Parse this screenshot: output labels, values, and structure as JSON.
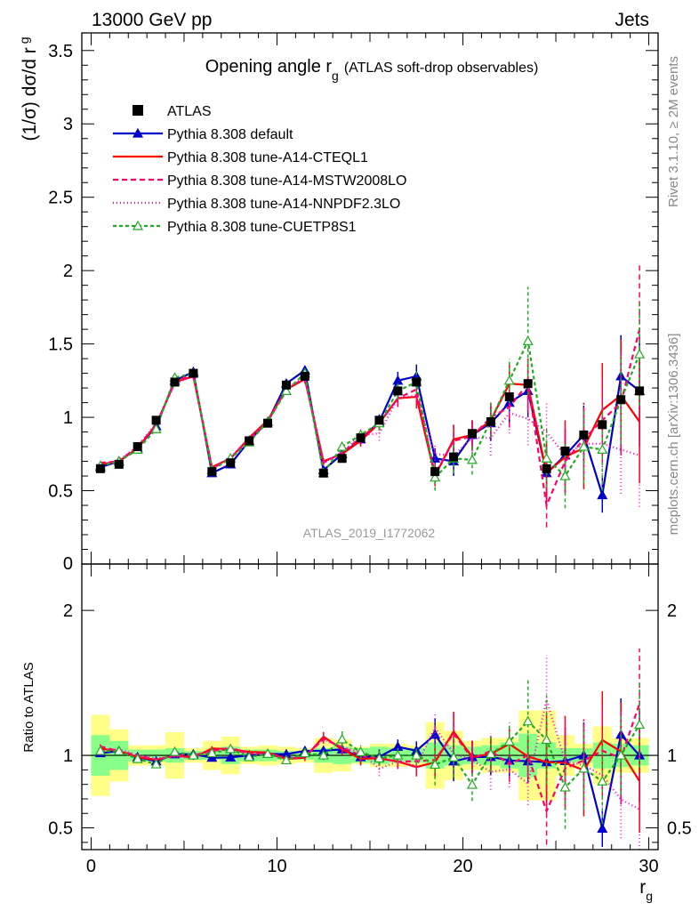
{
  "header": {
    "left": "13000 GeV pp",
    "right": "Jets"
  },
  "side_notes": {
    "rivet": "Rivet 3.1.10, ≥ 2M events",
    "mcplots": "mcplots.cern.ch [arXiv:1306.3436]"
  },
  "chart_data": {
    "type": "line",
    "title_main": "Opening angle r",
    "title_sub": "g",
    "title_note": "(ATLAS soft-drop observables)",
    "watermark": "ATLAS_2019_I1772062",
    "xlabel": "r",
    "xlabel_sub": "g",
    "ylabel": "(1/σ) dσ/d r",
    "ylabel_sub": "g",
    "ratio_ylabel": "Ratio to ATLAS",
    "xlim": [
      -0.5,
      30.5
    ],
    "ylim": [
      0,
      3.62
    ],
    "ratio_ylim": [
      0.35,
      2.32
    ],
    "main_ticks": [
      "0.5",
      "1",
      "1.5",
      "2",
      "2.5",
      "3",
      "3.5"
    ],
    "main_tick_values": [
      0.5,
      1,
      1.5,
      2,
      2.5,
      3,
      3.5
    ],
    "main_zero_label": "0",
    "ratio_ticks": [
      "0.5",
      "1",
      "2"
    ],
    "ratio_tick_values": [
      0.5,
      1,
      2
    ],
    "x_ticks": [
      "0",
      "10",
      "20",
      "30"
    ],
    "x_tick_values": [
      0,
      10,
      20,
      30
    ],
    "x": [
      0.5,
      1.5,
      2.5,
      3.5,
      4.5,
      5.5,
      6.5,
      7.5,
      8.5,
      9.5,
      10.5,
      11.5,
      12.5,
      13.5,
      14.5,
      15.5,
      16.5,
      17.5,
      18.5,
      19.5,
      20.5,
      21.5,
      22.5,
      23.5,
      24.5,
      25.5,
      26.5,
      27.5,
      28.5,
      29.5
    ],
    "data": {
      "name": "ATLAS",
      "values": [
        0.65,
        0.68,
        0.8,
        0.98,
        1.24,
        1.3,
        0.63,
        0.69,
        0.84,
        0.96,
        1.22,
        1.28,
        0.62,
        0.72,
        0.86,
        0.98,
        1.18,
        1.24,
        0.63,
        0.73,
        0.89,
        0.97,
        1.14,
        1.23,
        0.65,
        0.77,
        0.88,
        0.95,
        1.12,
        1.18
      ],
      "ratio_band_stat": [
        0.14,
        0.1,
        0.04,
        0.04,
        0.05,
        0.03,
        0.03,
        0.06,
        0.04,
        0.04,
        0.03,
        0.03,
        0.05,
        0.06,
        0.05,
        0.06,
        0.05,
        0.05,
        0.09,
        0.07,
        0.06,
        0.07,
        0.09,
        0.15,
        0.09,
        0.05,
        0.05,
        0.09,
        0.08,
        0.07
      ],
      "ratio_band_total": [
        0.28,
        0.18,
        0.07,
        0.07,
        0.16,
        0.05,
        0.1,
        0.13,
        0.06,
        0.07,
        0.06,
        0.05,
        0.12,
        0.11,
        0.06,
        0.08,
        0.08,
        0.07,
        0.23,
        0.17,
        0.1,
        0.12,
        0.12,
        0.31,
        0.31,
        0.14,
        0.08,
        0.2,
        0.12,
        0.12
      ]
    },
    "series": [
      {
        "name": "Pythia 8.308 default",
        "color": "#0000cc",
        "dash": "",
        "marker": "triangle-filled",
        "values": [
          0.66,
          0.7,
          0.79,
          0.94,
          1.25,
          1.31,
          0.62,
          0.68,
          0.84,
          0.97,
          1.23,
          1.32,
          0.64,
          0.75,
          0.85,
          0.97,
          1.25,
          1.28,
          0.72,
          0.7,
          0.88,
          0.96,
          1.1,
          1.18,
          0.62,
          0.74,
          0.88,
          0.47,
          1.28,
          1.18
        ],
        "errors": [
          0.01,
          0.01,
          0.01,
          0.01,
          0.01,
          0.02,
          0.01,
          0.01,
          0.01,
          0.01,
          0.02,
          0.03,
          0.02,
          0.03,
          0.04,
          0.05,
          0.06,
          0.08,
          0.07,
          0.1,
          0.1,
          0.12,
          0.14,
          0.18,
          0.18,
          0.18,
          0.2,
          0.12,
          0.28,
          0.38
        ]
      },
      {
        "name": "Pythia 8.308 tune-A14-CTEQL1",
        "color": "#ff0000",
        "dash": "",
        "marker": "none",
        "values": [
          0.68,
          0.7,
          0.79,
          0.95,
          1.24,
          1.28,
          0.66,
          0.72,
          0.86,
          0.98,
          1.19,
          1.26,
          0.7,
          0.75,
          0.84,
          0.96,
          1.13,
          1.14,
          0.6,
          0.85,
          0.88,
          0.98,
          1.23,
          1.22,
          0.62,
          0.73,
          0.79,
          1.05,
          1.15,
          0.97
        ],
        "errors": [
          0.01,
          0.01,
          0.01,
          0.01,
          0.01,
          0.02,
          0.01,
          0.01,
          0.01,
          0.01,
          0.02,
          0.03,
          0.02,
          0.03,
          0.04,
          0.05,
          0.06,
          0.08,
          0.07,
          0.1,
          0.1,
          0.12,
          0.14,
          0.18,
          0.22,
          0.25,
          0.28,
          0.32,
          0.38,
          0.42
        ]
      },
      {
        "name": "Pythia 8.308 tune-A14-MSTW2008LO",
        "color": "#ff0066",
        "dash": "6,4",
        "marker": "none",
        "values": [
          0.69,
          0.7,
          0.8,
          0.95,
          1.24,
          1.3,
          0.65,
          0.72,
          0.85,
          0.97,
          1.19,
          1.27,
          0.69,
          0.76,
          0.86,
          0.96,
          1.13,
          1.19,
          0.61,
          0.84,
          0.87,
          1.0,
          1.07,
          1.23,
          0.4,
          0.7,
          0.85,
          0.98,
          1.1,
          1.6
        ],
        "errors": [
          0.01,
          0.01,
          0.01,
          0.01,
          0.01,
          0.02,
          0.01,
          0.01,
          0.01,
          0.01,
          0.02,
          0.03,
          0.02,
          0.03,
          0.04,
          0.05,
          0.06,
          0.08,
          0.07,
          0.1,
          0.1,
          0.12,
          0.14,
          0.18,
          0.15,
          0.22,
          0.25,
          0.3,
          0.36,
          0.45
        ]
      },
      {
        "name": "Pythia 8.308 tune-A14-NNPDF2.3LO",
        "color": "#ff00cc",
        "dash": "1,3",
        "marker": "none",
        "values": [
          0.67,
          0.71,
          0.8,
          0.96,
          1.23,
          1.28,
          0.65,
          0.73,
          0.85,
          0.97,
          1.2,
          1.27,
          0.69,
          0.76,
          0.88,
          0.89,
          1.13,
          1.15,
          0.75,
          0.74,
          0.86,
          0.86,
          1.03,
          0.99,
          0.9,
          0.74,
          0.82,
          0.82,
          0.78,
          0.74
        ],
        "errors": [
          0.01,
          0.01,
          0.01,
          0.01,
          0.01,
          0.02,
          0.01,
          0.01,
          0.01,
          0.01,
          0.02,
          0.03,
          0.02,
          0.03,
          0.04,
          0.05,
          0.06,
          0.08,
          0.07,
          0.1,
          0.1,
          0.12,
          0.14,
          0.18,
          0.2,
          0.22,
          0.25,
          0.28,
          0.3,
          0.35
        ]
      },
      {
        "name": "Pythia 8.308 tune-CUETP8S1",
        "color": "#22aa22",
        "dash": "4,3",
        "marker": "triangle-open",
        "values": [
          0.67,
          0.7,
          0.78,
          0.92,
          1.27,
          1.3,
          0.64,
          0.72,
          0.83,
          0.97,
          1.18,
          1.3,
          0.62,
          0.8,
          0.88,
          0.96,
          1.18,
          1.24,
          0.59,
          0.72,
          0.71,
          0.98,
          1.25,
          1.52,
          0.72,
          0.6,
          0.8,
          0.78,
          1.12,
          1.43
        ],
        "errors": [
          0.01,
          0.01,
          0.01,
          0.01,
          0.01,
          0.02,
          0.01,
          0.01,
          0.01,
          0.01,
          0.02,
          0.03,
          0.02,
          0.04,
          0.04,
          0.05,
          0.06,
          0.08,
          0.09,
          0.1,
          0.1,
          0.12,
          0.15,
          0.37,
          0.2,
          0.22,
          0.25,
          0.28,
          0.3,
          0.35
        ]
      }
    ]
  }
}
